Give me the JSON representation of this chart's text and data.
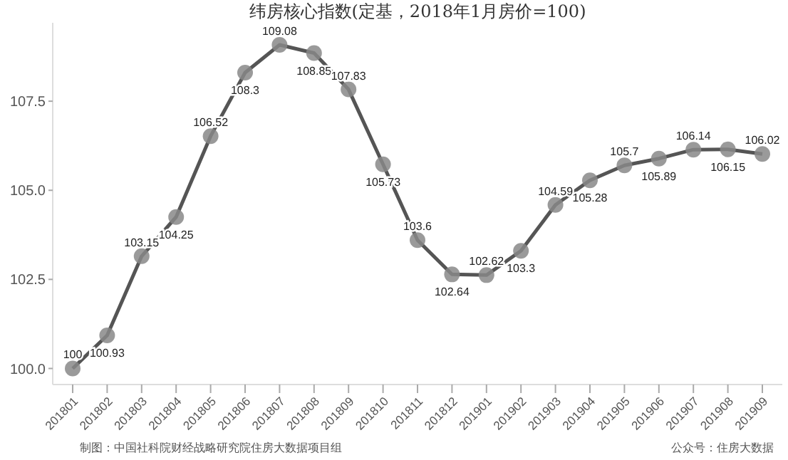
{
  "chart_data": {
    "type": "line",
    "title": "纬房核心指数(定基，2018年1月房价=100)",
    "categories": [
      "201801",
      "201802",
      "201803",
      "201804",
      "201805",
      "201806",
      "201807",
      "201808",
      "201809",
      "201810",
      "201811",
      "201812",
      "201901",
      "201902",
      "201903",
      "201904",
      "201905",
      "201906",
      "201907",
      "201908",
      "201909"
    ],
    "series": [
      {
        "color": "#555555",
        "values": [
          100,
          100.93,
          103.15,
          104.25,
          106.52,
          108.3,
          109.08,
          108.85,
          107.83,
          105.73,
          103.6,
          102.64,
          102.62,
          103.3,
          104.59,
          105.28,
          105.7,
          105.89,
          106.14,
          106.15,
          106.02
        ]
      }
    ],
    "ylim": [
      99.55,
      109.7
    ],
    "yticks": [
      {
        "value": 100,
        "label": "100.0"
      },
      {
        "value": 102.5,
        "label": "102.5"
      },
      {
        "value": 105,
        "label": "105.0"
      },
      {
        "value": 107.5,
        "label": "107.5"
      }
    ],
    "grid": false,
    "marker": "circle",
    "line_style": "solid",
    "data_labels": true,
    "legend": false,
    "annotations": [
      "制图：中国社科院财经战略研究院住房大数据项目组",
      "公众号：住房大数据"
    ]
  }
}
